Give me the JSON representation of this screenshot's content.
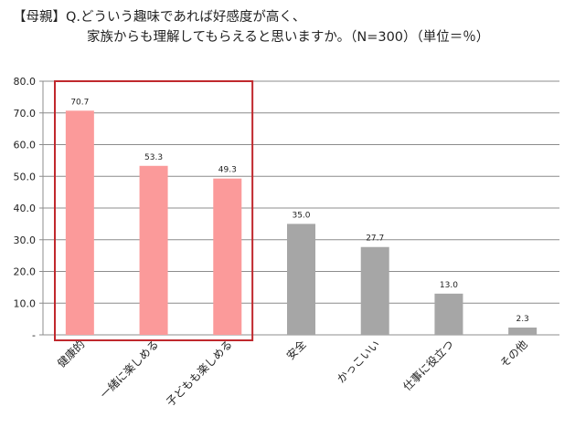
{
  "title": {
    "line1": "【母親】Q.どういう趣味であれば好感度が高く、",
    "line2": "家族からも理解してもらえると思いますか。（N=300）（単位＝％）"
  },
  "colors": {
    "highlight": "#fb9a9a",
    "normal": "#a6a6a6",
    "box": "#c0282d",
    "grid": "#8c8c8c"
  },
  "chart_data": {
    "type": "bar",
    "title": "【母親】Q.どういう趣味であれば好感度が高く、家族からも理解してもらえると思いますか。（N=300）（単位＝％）",
    "xlabel": "",
    "ylabel": "",
    "categories": [
      "健康的",
      "一緒に楽しめる",
      "子どもも楽しめる",
      "安全",
      "かっこいい",
      "仕事に役立つ",
      "その他"
    ],
    "values": [
      70.7,
      53.3,
      49.3,
      35.0,
      27.7,
      13.0,
      2.3
    ],
    "value_labels": [
      "70.7",
      "53.3",
      "49.3",
      "35.0",
      "27.7",
      "13.0",
      "2.3"
    ],
    "highlighted": [
      true,
      true,
      true,
      false,
      false,
      false,
      false
    ],
    "ylim": [
      0,
      80
    ],
    "yticks": [
      "-",
      "10.0",
      "20.0",
      "30.0",
      "40.0",
      "50.0",
      "60.0",
      "70.0",
      "80.0"
    ],
    "grid": true,
    "legend": "none"
  }
}
